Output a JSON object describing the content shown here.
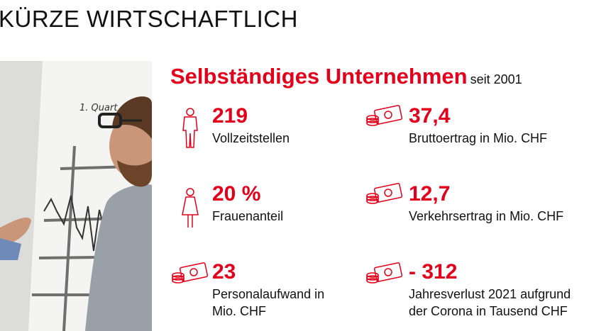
{
  "page": {
    "title": "KÜRZE WIRTSCHAFTLICH"
  },
  "photo": {
    "chart_caption": "1. Quart"
  },
  "headline": {
    "main": "Selbständiges Unternehmen",
    "suffix": "seit 2001"
  },
  "stats": [
    {
      "icon": "person-icon",
      "value": "219",
      "label": "Vollzeitstellen"
    },
    {
      "icon": "money-icon",
      "value": "37,4",
      "label": "Bruttoertrag in Mio. CHF"
    },
    {
      "icon": "woman-icon",
      "value": "20 %",
      "label": "Frauenanteil"
    },
    {
      "icon": "money-icon",
      "value": "12,7",
      "label": "Verkehrsertrag in Mio. CHF"
    },
    {
      "icon": "money-icon",
      "value": "23",
      "label_line1": "Personalaufwand in",
      "label_line2": "Mio. CHF"
    },
    {
      "icon": "money-icon",
      "value": "- 312",
      "label_line1": "Jahresverlust 2021 aufgrund",
      "label_line2": "der Corona in Tausend CHF"
    }
  ],
  "colors": {
    "accent": "#e3001b",
    "text": "#111111"
  }
}
